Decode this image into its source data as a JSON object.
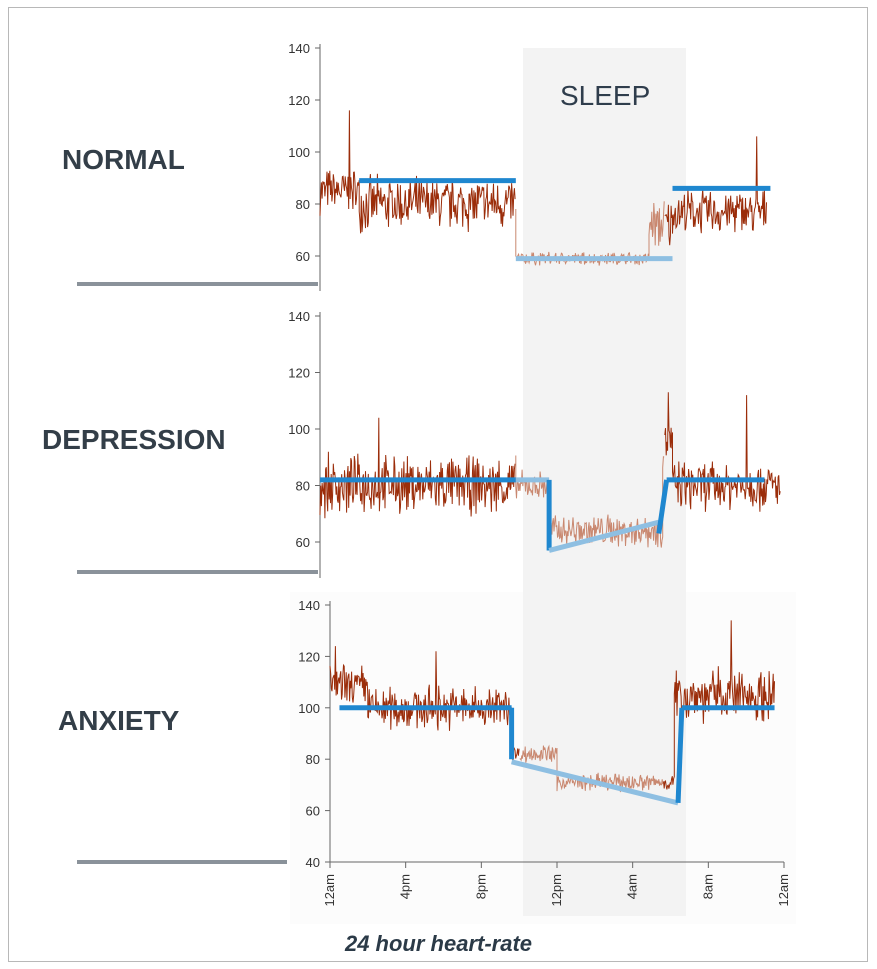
{
  "sleep_label": "SLEEP",
  "footer_caption": "24 hour heart-rate",
  "colors": {
    "raw_signal_awake": "#9b2d0a",
    "raw_signal_sleep": "#c98870",
    "trend_awake": "#1f87cf",
    "trend_sleep": "#8ebfe2",
    "sleep_band": "#f3f3f3",
    "separator": "#8a929a"
  },
  "chart_data": [
    {
      "type": "line",
      "title": "NORMAL",
      "ylim": [
        55,
        140
      ],
      "yticks": [
        60,
        80,
        100,
        120,
        140
      ],
      "xlim": [
        0,
        24
      ],
      "sleep_window": [
        10,
        18
      ],
      "trend": {
        "awake_before": {
          "x": [
            2,
            10
          ],
          "y": [
            89,
            89
          ]
        },
        "sleep": {
          "x": [
            10,
            18
          ],
          "y": [
            59,
            59
          ]
        },
        "awake_after": {
          "x": [
            18,
            23
          ],
          "y": [
            86,
            86
          ]
        }
      },
      "raw_profile": {
        "segments": [
          {
            "x": [
              0,
              2
            ],
            "mean": 85,
            "amp": 10
          },
          {
            "x": [
              2,
              10
            ],
            "mean": 80,
            "amp": 12
          },
          {
            "x": [
              10,
              16.8
            ],
            "mean": 59,
            "amp": 3
          },
          {
            "x": [
              16.8,
              18
            ],
            "mean": 72,
            "amp": 12
          },
          {
            "x": [
              18,
              22.8
            ],
            "mean": 77,
            "amp": 10
          }
        ],
        "peaks": [
          {
            "x": 1.5,
            "y": 116
          },
          {
            "x": 22.3,
            "y": 106
          }
        ]
      }
    },
    {
      "type": "line",
      "title": "DEPRESSION",
      "ylim": [
        55,
        140
      ],
      "yticks": [
        60,
        80,
        100,
        120,
        140
      ],
      "xlim": [
        0,
        24
      ],
      "sleep_window": [
        10,
        18
      ],
      "trend": {
        "awake_before": {
          "x": [
            0,
            10
          ],
          "y": [
            82,
            82
          ]
        },
        "sleep_flat": {
          "x": [
            10,
            11.7
          ],
          "y": [
            82,
            82
          ]
        },
        "drop": {
          "x": [
            11.7,
            11.7
          ],
          "y": [
            82,
            57
          ]
        },
        "sleep": {
          "x": [
            11.7,
            17.3
          ],
          "y": [
            57,
            67
          ]
        },
        "rise": {
          "x": [
            17.3,
            17.7
          ],
          "y": [
            63,
            82
          ]
        },
        "awake_after": {
          "x": [
            17.7,
            22.7
          ],
          "y": [
            82,
            82
          ]
        }
      },
      "raw_profile": {
        "segments": [
          {
            "x": [
              0,
              10
            ],
            "mean": 80,
            "amp": 12
          },
          {
            "x": [
              10,
              11.7
            ],
            "mean": 80,
            "amp": 6
          },
          {
            "x": [
              11.7,
              17.5
            ],
            "mean": 64,
            "amp": 7
          },
          {
            "x": [
              17.5,
              18
            ],
            "mean": 95,
            "amp": 12
          },
          {
            "x": [
              18,
              23.5
            ],
            "mean": 80,
            "amp": 10
          }
        ],
        "peaks": [
          {
            "x": 3,
            "y": 104
          },
          {
            "x": 17.8,
            "y": 113
          },
          {
            "x": 21.8,
            "y": 112
          }
        ]
      }
    },
    {
      "type": "line",
      "title": "ANXIETY",
      "ylim": [
        40,
        140
      ],
      "yticks": [
        40,
        60,
        80,
        100,
        120,
        140
      ],
      "xlim": [
        0,
        24
      ],
      "xticks": [
        "12am",
        "4pm",
        "8pm",
        "12pm",
        "4am",
        "8am",
        "12am"
      ],
      "sleep_window": [
        10,
        18
      ],
      "trend": {
        "awake_before": {
          "x": [
            0.5,
            9.6
          ],
          "y": [
            100,
            100
          ]
        },
        "drop": {
          "x": [
            9.6,
            9.6
          ],
          "y": [
            100,
            80
          ]
        },
        "sleep": {
          "x": [
            9.6,
            18.4
          ],
          "y": [
            79,
            63
          ]
        },
        "rise": {
          "x": [
            18.4,
            18.6
          ],
          "y": [
            63,
            100
          ]
        },
        "awake_after": {
          "x": [
            18.6,
            23.5
          ],
          "y": [
            100,
            100
          ]
        }
      },
      "raw_profile": {
        "segments": [
          {
            "x": [
              0,
              2
            ],
            "mean": 108,
            "amp": 10
          },
          {
            "x": [
              2,
              9.6
            ],
            "mean": 100,
            "amp": 10
          },
          {
            "x": [
              9.6,
              12
            ],
            "mean": 82,
            "amp": 4
          },
          {
            "x": [
              12,
              18.2
            ],
            "mean": 71,
            "amp": 4
          },
          {
            "x": [
              18.2,
              23.5
            ],
            "mean": 105,
            "amp": 12
          }
        ],
        "peaks": [
          {
            "x": 0.3,
            "y": 124
          },
          {
            "x": 5.6,
            "y": 122
          },
          {
            "x": 21.2,
            "y": 134
          }
        ]
      }
    }
  ]
}
